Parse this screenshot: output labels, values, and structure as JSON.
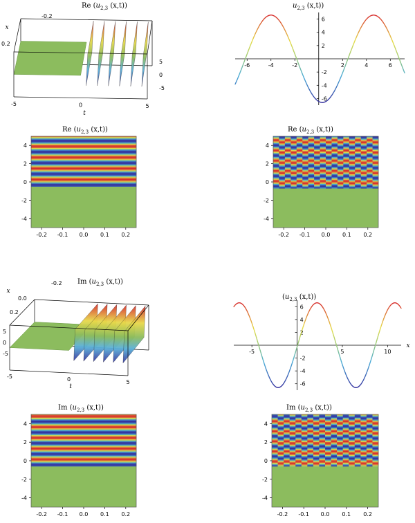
{
  "titles": {
    "re_func": "Re",
    "im_func": "Im",
    "u": "u",
    "sub": "2,3",
    "args": "(x,t))",
    "open": "("
  },
  "axis_labels": {
    "x": "x",
    "t": "t"
  },
  "chart_data": [
    {
      "type": "surface3d",
      "function": "Re",
      "t_ticks": [
        "-5",
        "0",
        "5"
      ],
      "x_ticks": [
        "-0.2",
        "0.2"
      ],
      "z_ticks": [
        "5",
        "0",
        "-5"
      ],
      "zlim": [
        -7,
        7
      ],
      "flat_region": "t < 0",
      "oscillation_count": 6
    },
    {
      "type": "line",
      "xlim": [
        -7,
        7.2
      ],
      "ylim": [
        -7,
        7
      ],
      "x_ticks": [
        "-6",
        "-4",
        "-2",
        "2",
        "4",
        "6"
      ],
      "y_ticks": [
        "6",
        "4",
        "2",
        "-2",
        "-4",
        "-6"
      ],
      "amplitude": 6.6,
      "period": 8.6,
      "phase_min_at": 0.3,
      "colors": [
        "#dd3333",
        "#dddd44",
        "#44bbcc",
        "#3333aa"
      ]
    },
    {
      "type": "heatmap",
      "function": "Re",
      "xlim": [
        -0.25,
        0.25
      ],
      "ylim": [
        -5,
        5
      ],
      "x_ticks": [
        "-0.2",
        "-0.1",
        "0.0",
        "0.1",
        "0.2"
      ],
      "y_ticks": [
        "4",
        "2",
        "0",
        "-2",
        "-4"
      ],
      "flat_below": -0.5,
      "flat_color": "#8cbc5e"
    },
    {
      "type": "heatmap",
      "function": "Re",
      "xlim": [
        -0.25,
        0.25
      ],
      "ylim": [
        -5,
        5
      ],
      "x_ticks": [
        "-0.2",
        "-0.1",
        "0.0",
        "0.1",
        "0.2"
      ],
      "y_ticks": [
        "4",
        "2",
        "0",
        "-2",
        "-4"
      ],
      "flat_below": -0.7,
      "flat_color": "#8cbc5e"
    },
    {
      "type": "surface3d",
      "function": "Im",
      "t_ticks": [
        "-5",
        "0",
        "5"
      ],
      "x_ticks": [
        "-0.2",
        "0.0",
        "0.2"
      ],
      "z_ticks": [
        "5",
        "0",
        "-5"
      ],
      "zlim": [
        -7,
        7
      ],
      "flat_region": "t < 0",
      "oscillation_count": 6
    },
    {
      "type": "line",
      "xlim": [
        -7,
        11.5
      ],
      "ylim": [
        -7,
        7
      ],
      "x_ticks": [
        "-5",
        "5",
        "10"
      ],
      "y_ticks": [
        "6",
        "4",
        "2",
        "-2",
        "-4",
        "-6"
      ],
      "amplitude": 6.6,
      "period": 8.6,
      "phase_max_at": 2.2,
      "colors": [
        "#dd3333",
        "#dddd44",
        "#44bbcc",
        "#3333aa"
      ]
    },
    {
      "type": "heatmap",
      "function": "Im",
      "xlim": [
        -0.25,
        0.25
      ],
      "ylim": [
        -5,
        5
      ],
      "x_ticks": [
        "-0.2",
        "-0.1",
        "0.0",
        "0.1",
        "0.2"
      ],
      "y_ticks": [
        "4",
        "2",
        "0",
        "-2",
        "-4"
      ],
      "flat_below": -0.6,
      "flat_color": "#8cbc5e"
    },
    {
      "type": "heatmap",
      "function": "Im",
      "xlim": [
        -0.25,
        0.25
      ],
      "ylim": [
        -5,
        5
      ],
      "x_ticks": [
        "-0.2",
        "-0.1",
        "0.0",
        "0.1",
        "0.2"
      ],
      "y_ticks": [
        "4",
        "2",
        "0",
        "-2",
        "-4"
      ],
      "flat_below": -0.6,
      "flat_color": "#8cbc5e"
    }
  ]
}
